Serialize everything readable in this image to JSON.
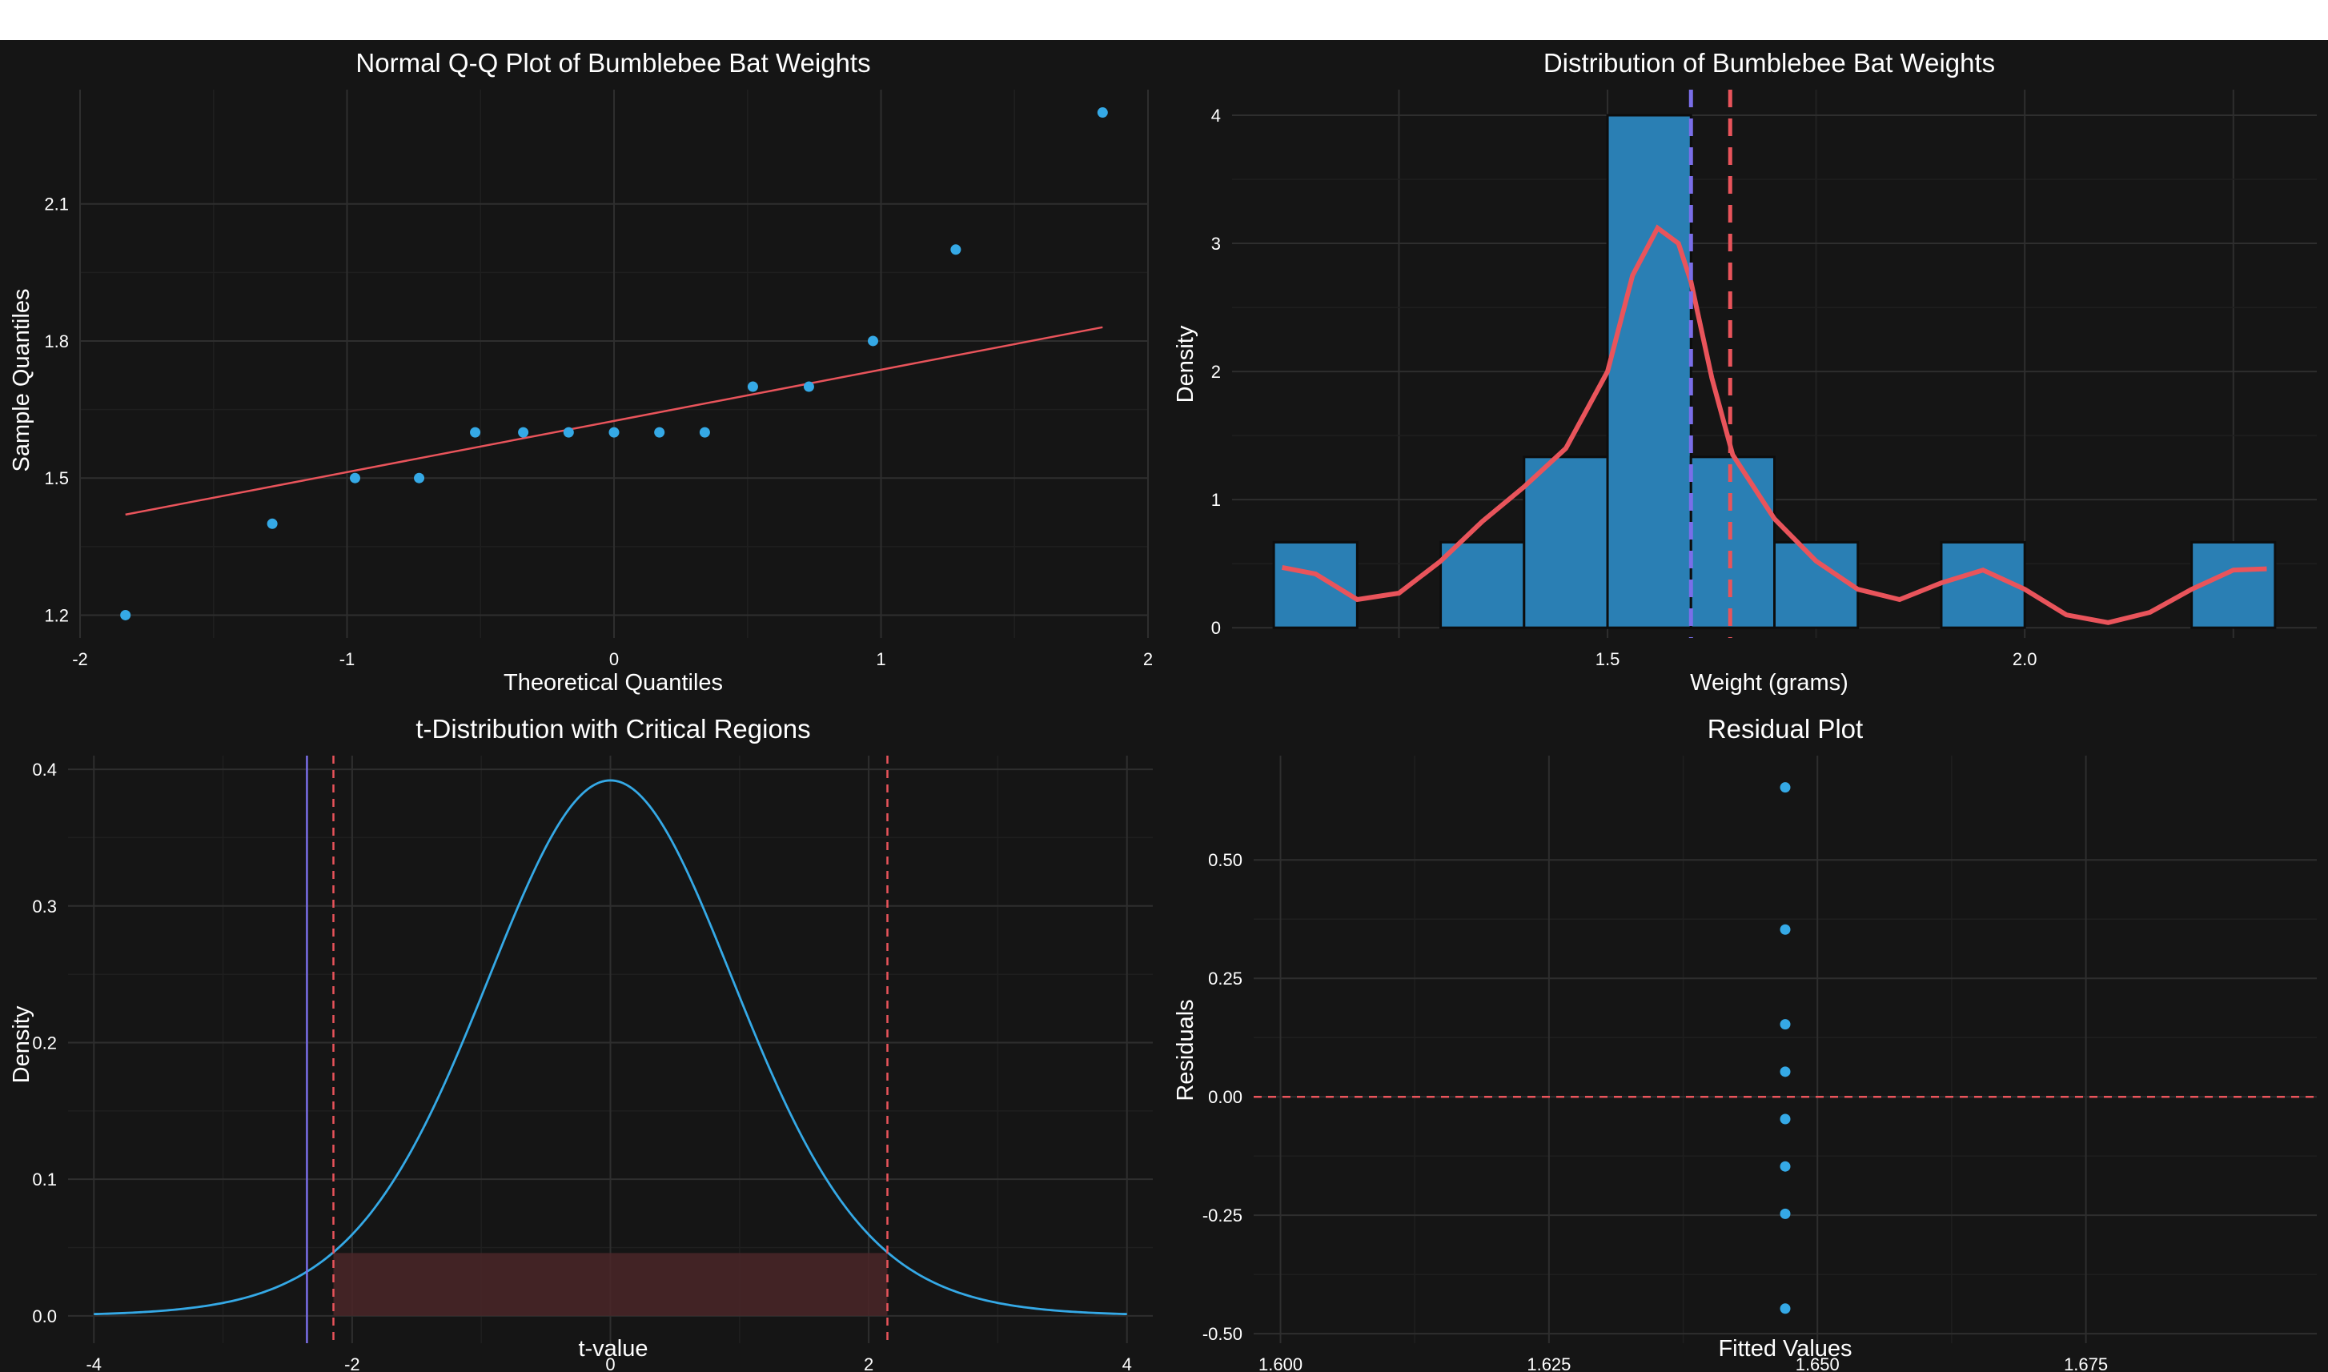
{
  "colors": {
    "background": "#151515",
    "grid_major": "#2e2e2e",
    "grid_minor": "#1f1f1f",
    "point": "#35a9e6",
    "bar_fill": "#2a7fb4",
    "red": "#e9545b",
    "purple": "#7a6ee8"
  },
  "chart_data": [
    {
      "id": "qq",
      "type": "scatter",
      "title": "Normal Q-Q Plot of Bumblebee Bat Weights",
      "xlabel": "Theoretical Quantiles",
      "ylabel": "Sample Quantiles",
      "xlim": [
        -2,
        2
      ],
      "ylim": [
        1.15,
        2.35
      ],
      "xticks": [
        -2,
        -1,
        0,
        1,
        2
      ],
      "xtick_labels": [
        "-2",
        "-1",
        "0",
        "1",
        "2"
      ],
      "yticks": [
        1.2,
        1.5,
        1.8,
        2.1
      ],
      "ytick_labels": [
        "1.2",
        "1.5",
        "1.8",
        "2.1"
      ],
      "points": {
        "x": [
          -1.83,
          -1.28,
          -0.97,
          -0.73,
          -0.52,
          -0.34,
          -0.17,
          0.0,
          0.17,
          0.34,
          0.52,
          0.73,
          0.97,
          1.28,
          1.83
        ],
        "y": [
          1.2,
          1.4,
          1.5,
          1.5,
          1.6,
          1.6,
          1.6,
          1.6,
          1.6,
          1.6,
          1.7,
          1.7,
          1.8,
          2.0,
          2.3
        ]
      },
      "reference_line": {
        "x": [
          -1.83,
          1.83
        ],
        "y": [
          1.42,
          1.83
        ]
      }
    },
    {
      "id": "hist",
      "type": "bar",
      "title": "Distribution of Bumblebee Bat Weights",
      "xlabel": "Weight (grams)",
      "ylabel": "Density",
      "xlim": [
        1.05,
        2.35
      ],
      "ylim": [
        -0.08,
        4.2
      ],
      "xticks": [
        1.5,
        2.0
      ],
      "xtick_labels": [
        "1.5",
        "2.0"
      ],
      "yticks": [
        0,
        1,
        2,
        3,
        4
      ],
      "ytick_labels": [
        "0",
        "1",
        "2",
        "3",
        "4"
      ],
      "bins": [
        {
          "x0": 1.1,
          "x1": 1.2,
          "density": 0.667
        },
        {
          "x0": 1.3,
          "x1": 1.4,
          "density": 0.667
        },
        {
          "x0": 1.4,
          "x1": 1.5,
          "density": 1.333
        },
        {
          "x0": 1.5,
          "x1": 1.6,
          "density": 4.0
        },
        {
          "x0": 1.6,
          "x1": 1.7,
          "density": 1.333
        },
        {
          "x0": 1.7,
          "x1": 1.8,
          "density": 0.667
        },
        {
          "x0": 1.9,
          "x1": 2.0,
          "density": 0.667
        },
        {
          "x0": 2.2,
          "x1": 2.3,
          "density": 0.667
        }
      ],
      "density_curve": {
        "x": [
          1.11,
          1.15,
          1.2,
          1.25,
          1.3,
          1.35,
          1.4,
          1.45,
          1.5,
          1.53,
          1.56,
          1.585,
          1.6,
          1.625,
          1.65,
          1.7,
          1.75,
          1.8,
          1.85,
          1.9,
          1.95,
          2.0,
          2.05,
          2.1,
          2.15,
          2.2,
          2.25,
          2.29
        ],
        "y": [
          0.47,
          0.42,
          0.22,
          0.27,
          0.52,
          0.83,
          1.1,
          1.4,
          2.0,
          2.75,
          3.12,
          3.0,
          2.7,
          1.95,
          1.35,
          0.85,
          0.52,
          0.3,
          0.22,
          0.35,
          0.45,
          0.3,
          0.1,
          0.04,
          0.12,
          0.3,
          0.45,
          0.46
        ]
      },
      "vlines": [
        {
          "x": 1.6,
          "color": "purple",
          "style": "dashed"
        },
        {
          "x": 1.647,
          "color": "red",
          "style": "dashed"
        }
      ]
    },
    {
      "id": "tdist",
      "type": "line",
      "title": "t-Distribution with Critical Regions",
      "xlabel": "t-value",
      "ylabel": "Density",
      "xlim": [
        -4.2,
        4.2
      ],
      "ylim": [
        -0.02,
        0.41
      ],
      "xticks": [
        -4,
        -2,
        0,
        2,
        4
      ],
      "xtick_labels": [
        "-4",
        "-2",
        "0",
        "2",
        "4"
      ],
      "yticks": [
        0.0,
        0.1,
        0.2,
        0.3,
        0.4
      ],
      "ytick_labels": [
        "0.0",
        "0.1",
        "0.2",
        "0.3",
        "0.4"
      ],
      "df": 14,
      "curve_range": [
        -4,
        4
      ],
      "shaded_band": {
        "x": [
          -2.145,
          2.145
        ],
        "height": 0.046
      },
      "critical_values": [
        -2.145,
        2.145
      ],
      "t_statistic": -2.35
    },
    {
      "id": "resid",
      "type": "scatter",
      "title": "Residual Plot",
      "xlabel": "Fitted Values",
      "ylabel": "Residuals",
      "xlim": [
        1.5975,
        1.6965
      ],
      "ylim": [
        -0.52,
        0.72
      ],
      "xticks": [
        1.6,
        1.625,
        1.65,
        1.675
      ],
      "xtick_labels": [
        "1.600",
        "1.625",
        "1.650",
        "1.675"
      ],
      "yticks": [
        -0.5,
        -0.25,
        0.0,
        0.25,
        0.5
      ],
      "ytick_labels": [
        "-0.50",
        "-0.25",
        "0.00",
        "0.25",
        "0.50"
      ],
      "points": {
        "x": [
          1.647,
          1.647,
          1.647,
          1.647,
          1.647,
          1.647,
          1.647,
          1.647
        ],
        "y": [
          0.653,
          0.353,
          0.153,
          0.053,
          -0.047,
          -0.147,
          -0.247,
          -0.447
        ]
      },
      "hline": {
        "y": 0,
        "color": "red",
        "style": "dashed"
      }
    }
  ]
}
